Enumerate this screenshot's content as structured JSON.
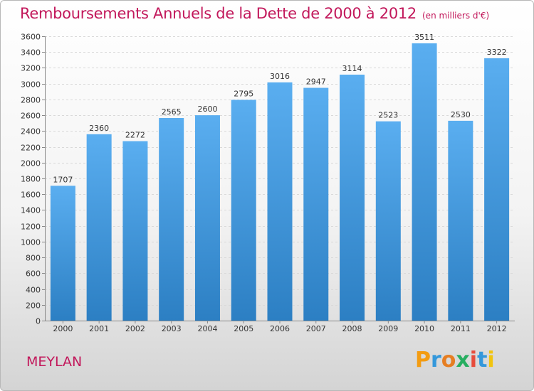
{
  "header": {
    "title": "Remboursements Annuels de la Dette de 2000 à 2012",
    "subtitle": "(en milliers d'€)"
  },
  "footer": {
    "commune": "MEYLAN",
    "logo_text": "Proxiti",
    "logo_colors": [
      "#f39c12",
      "#3498db",
      "#e67e22",
      "#27ae60",
      "#e74c3c",
      "#3498db",
      "#f1c40f"
    ]
  },
  "colors": {
    "title": "#c2185b",
    "bar_light": "#5aaef0",
    "bar_dark": "#2c7fc3"
  },
  "chart_data": {
    "type": "bar",
    "title": "Remboursements Annuels de la Dette de 2000 à 2012",
    "subtitle": "(en milliers d'€)",
    "xlabel": "",
    "ylabel": "",
    "categories": [
      "2000",
      "2001",
      "2002",
      "2003",
      "2004",
      "2005",
      "2006",
      "2007",
      "2008",
      "2009",
      "2010",
      "2011",
      "2012"
    ],
    "values": [
      1707,
      2360,
      2272,
      2565,
      2600,
      2795,
      3016,
      2947,
      3114,
      2523,
      3511,
      2530,
      3322
    ],
    "ylim": [
      0,
      3600
    ],
    "ytick_step": 200,
    "grid": true,
    "legend": "none"
  }
}
